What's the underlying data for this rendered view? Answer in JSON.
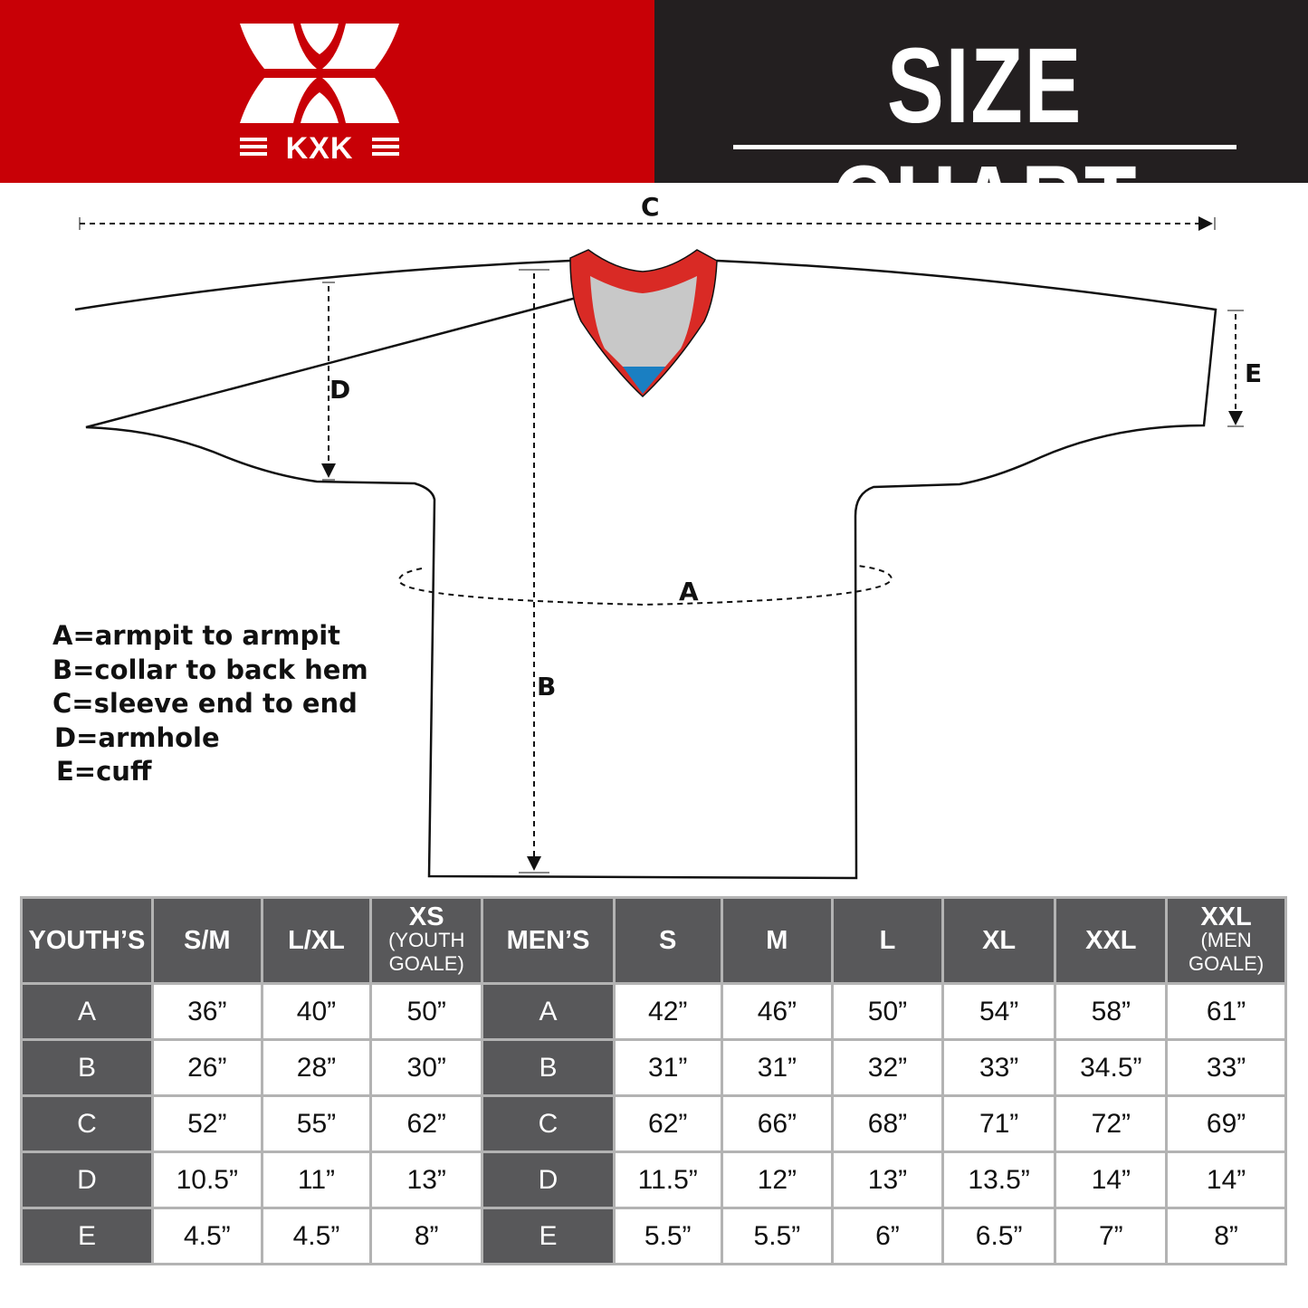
{
  "brand": {
    "logo_text": "KXK",
    "red": "#c80006",
    "dark": "#231f20"
  },
  "title": "SIZE CHART",
  "diagram": {
    "labels": {
      "a": "A",
      "b": "B",
      "c": "C",
      "d": "D",
      "e": "E"
    },
    "collar_colors": {
      "trim": "#d92a25",
      "inner": "#c8c8c8",
      "tip": "#1a7fc2"
    }
  },
  "legend": [
    "A=armpit to armpit",
    "B=collar to back hem",
    "C=sleeve end to end",
    "D=armhole",
    "E=cuff"
  ],
  "table": {
    "headers": [
      {
        "main": "YOUTH’S",
        "sub": ""
      },
      {
        "main": "S/M",
        "sub": ""
      },
      {
        "main": "L/XL",
        "sub": ""
      },
      {
        "main": "XS",
        "sub": "(YOUTH GOALE)"
      },
      {
        "main": "MEN’S",
        "sub": ""
      },
      {
        "main": "S",
        "sub": ""
      },
      {
        "main": "M",
        "sub": ""
      },
      {
        "main": "L",
        "sub": ""
      },
      {
        "main": "XL",
        "sub": ""
      },
      {
        "main": "XXL",
        "sub": ""
      },
      {
        "main": "XXL",
        "sub": "(MEN GOALE)"
      }
    ],
    "rows": [
      [
        "A",
        "36”",
        "40”",
        "50”",
        "A",
        "42”",
        "46”",
        "50”",
        "54”",
        "58”",
        "61”"
      ],
      [
        "B",
        "26”",
        "28”",
        "30”",
        "B",
        "31”",
        "31”",
        "32”",
        "33”",
        "34.5”",
        "33”"
      ],
      [
        "C",
        "52”",
        "55”",
        "62”",
        "C",
        "62”",
        "66”",
        "68”",
        "71”",
        "72”",
        "69”"
      ],
      [
        "D",
        "10.5”",
        "11”",
        "13”",
        "D",
        "11.5”",
        "12”",
        "13”",
        "13.5”",
        "14”",
        "14”"
      ],
      [
        "E",
        "4.5”",
        "4.5”",
        "8”",
        "E",
        "5.5”",
        "5.5”",
        "6”",
        "6.5”",
        "7”",
        "8”"
      ]
    ]
  }
}
